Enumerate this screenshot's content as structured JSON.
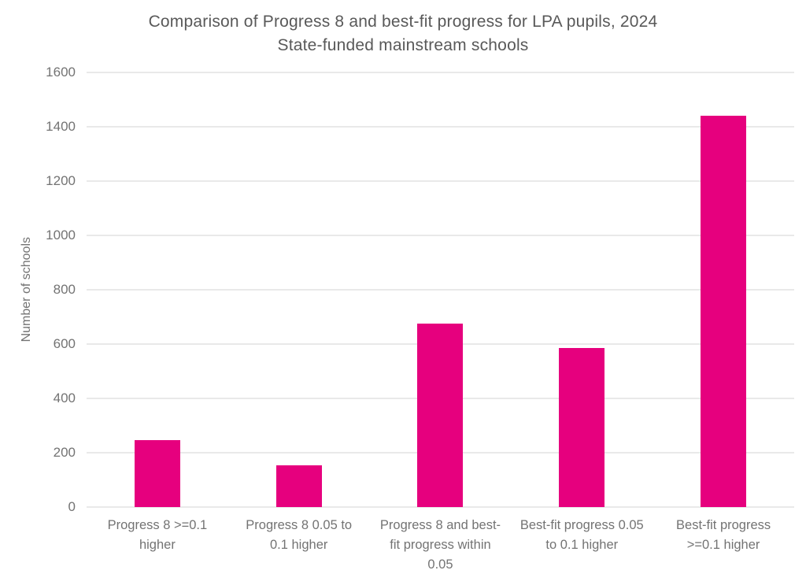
{
  "title": {
    "line1": "Comparison of Progress 8 and best-fit progress for LPA pupils, 2024",
    "line2": "State-funded mainstream schools"
  },
  "colors": {
    "bar": "#e6007e",
    "title_text": "#595959",
    "axis_text": "#737373",
    "gridline": "#e9e9e9"
  },
  "chart_data": {
    "type": "bar",
    "title": "Comparison of Progress 8 and best-fit progress for LPA pupils, 2024",
    "subtitle": "State-funded mainstream schools",
    "categories": [
      "Progress 8 >=0.1 higher",
      "Progress 8 0.05 to 0.1 higher",
      "Progress 8 and best-fit progress within 0.05",
      "Best-fit progress 0.05 to 0.1 higher",
      "Best-fit progress >=0.1 higher"
    ],
    "values": [
      245,
      155,
      675,
      585,
      1440
    ],
    "xlabel": "",
    "ylabel": "Number of schools",
    "ylim": [
      0,
      1600
    ],
    "yticks": [
      0,
      200,
      400,
      600,
      800,
      1000,
      1200,
      1400,
      1600
    ],
    "grid": true,
    "legend": false,
    "bar_color": "#e6007e"
  }
}
